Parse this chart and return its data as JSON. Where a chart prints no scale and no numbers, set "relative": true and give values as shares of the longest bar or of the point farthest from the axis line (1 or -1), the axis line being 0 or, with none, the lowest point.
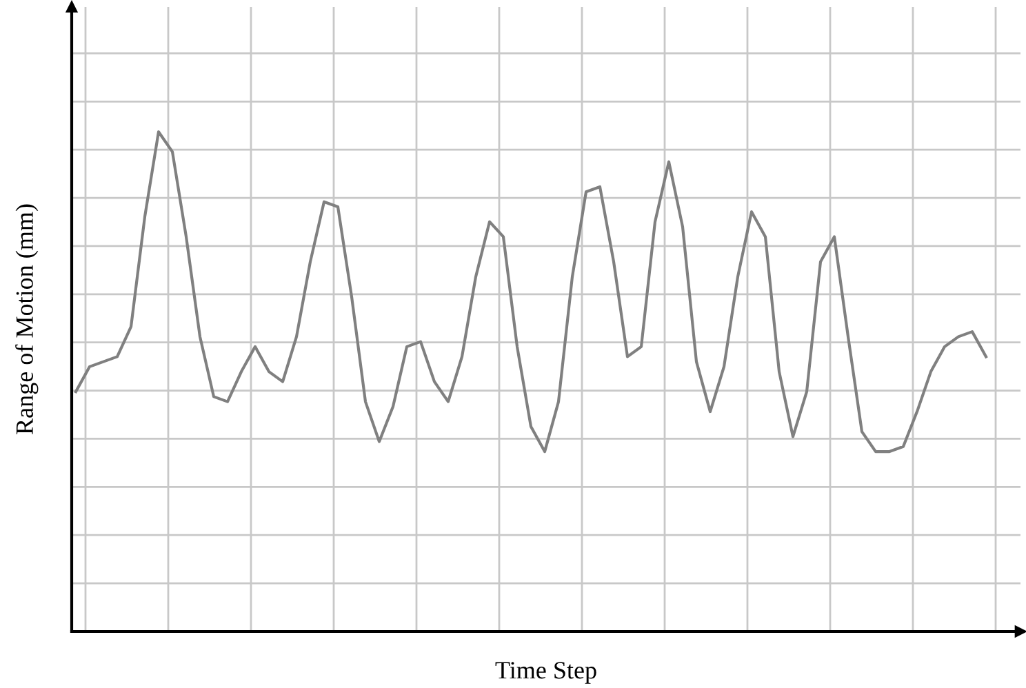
{
  "chart_data": {
    "type": "line",
    "relative": true,
    "xlabel": "Time Step",
    "ylabel": "Range of Motion (mm)",
    "grid": true,
    "marker": "none",
    "line_style": "solid",
    "categories": [
      null,
      null,
      null,
      null,
      null,
      null,
      null,
      null,
      null,
      null,
      null,
      null,
      null,
      null,
      null,
      null,
      null,
      null,
      null,
      null,
      null,
      null,
      null,
      null,
      null,
      null,
      null,
      null,
      null,
      null,
      null,
      null,
      null,
      null,
      null,
      null,
      null,
      null,
      null,
      null,
      null,
      null,
      null,
      null,
      null,
      null,
      null,
      null,
      null,
      null,
      null,
      null,
      null,
      null,
      null,
      null,
      null,
      null,
      null,
      null,
      null,
      null,
      null,
      null,
      null,
      null,
      null
    ],
    "series": [
      {
        "color": "#808080",
        "values": [
          0.48,
          0.53,
          0.54,
          0.55,
          0.61,
          0.83,
          1.0,
          0.96,
          0.79,
          0.59,
          0.47,
          0.46,
          0.52,
          0.57,
          0.52,
          0.5,
          0.59,
          0.74,
          0.86,
          0.85,
          0.67,
          0.46,
          0.38,
          0.45,
          0.57,
          0.58,
          0.5,
          0.46,
          0.55,
          0.71,
          0.82,
          0.79,
          0.57,
          0.41,
          0.36,
          0.46,
          0.71,
          0.88,
          0.89,
          0.74,
          0.55,
          0.57,
          0.82,
          0.94,
          0.81,
          0.54,
          0.44,
          0.53,
          0.71,
          0.84,
          0.79,
          0.52,
          0.39,
          0.48,
          0.74,
          0.79,
          0.59,
          0.4,
          0.36,
          0.36,
          0.37,
          0.44,
          0.52,
          0.57,
          0.59,
          0.6,
          0.55
        ]
      }
    ]
  }
}
